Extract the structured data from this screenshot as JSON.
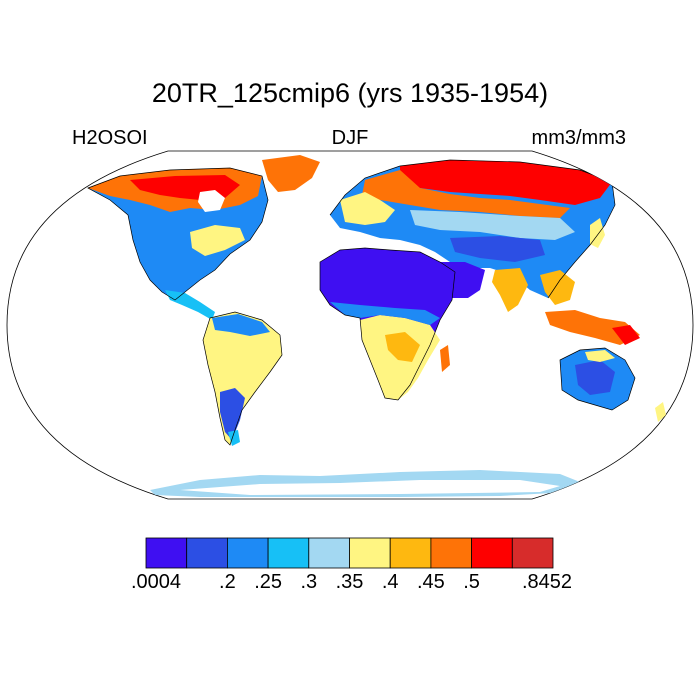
{
  "title": "20TR_125cmip6 (yrs 1935-1954)",
  "left_label": "H2OSOI",
  "center_label": "DJF",
  "right_label": "mm3/mm3",
  "colorbar": {
    "colors": [
      "#3f0ff2",
      "#2c4fe4",
      "#1e8af5",
      "#17c0f6",
      "#a3d8f2",
      "#fff582",
      "#feb810",
      "#fe7307",
      "#fe0000",
      "#d72c2b"
    ],
    "tick_labels": [
      ".0004",
      ".2",
      ".25",
      ".3",
      ".35",
      ".4",
      ".45",
      ".5",
      ".8452"
    ]
  }
}
